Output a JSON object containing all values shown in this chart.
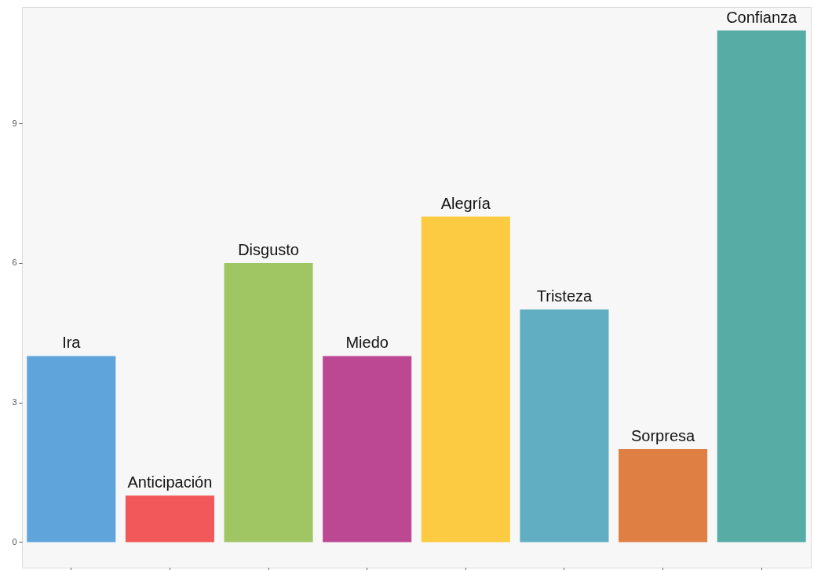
{
  "chart_data": {
    "type": "bar",
    "categories": [
      "Ira",
      "Anticipación",
      "Disgusto",
      "Miedo",
      "Alegría",
      "Tristeza",
      "Sorpresa",
      "Confianza"
    ],
    "values": [
      4,
      1,
      6,
      4,
      7,
      5,
      2,
      11
    ],
    "colors": [
      "#5fa5db",
      "#f2575a",
      "#a0c563",
      "#bc4893",
      "#fdcb41",
      "#61adc2",
      "#e07f44",
      "#57ada5"
    ],
    "ylim": [
      -0.55,
      11.5
    ],
    "yticks": [
      0,
      3,
      6,
      9
    ],
    "grid": false,
    "tick_labels": "y"
  }
}
